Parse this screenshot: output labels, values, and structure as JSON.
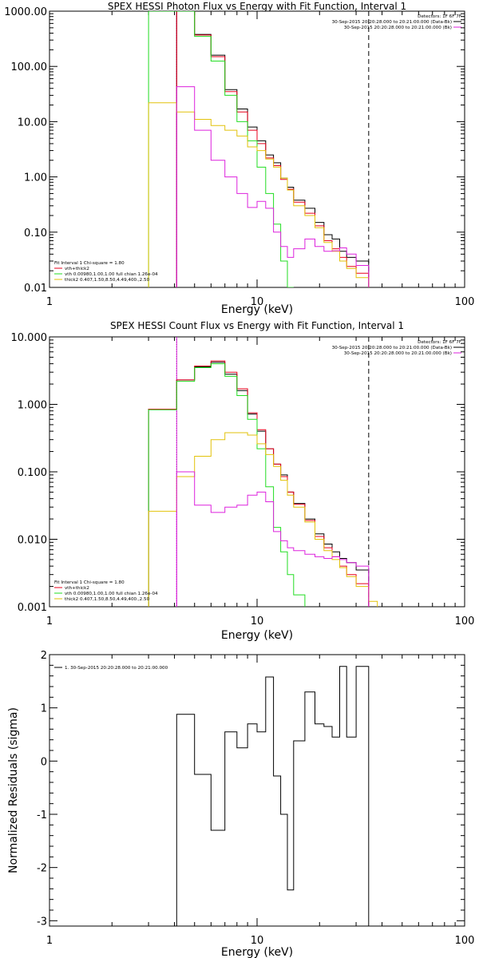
{
  "colors": {
    "black": "#000000",
    "red": "#e8001c",
    "green": "#22dd22",
    "yellow": "#e2c20a",
    "magenta": "#dd22dd"
  },
  "chart_data": [
    {
      "type": "line",
      "step": true,
      "title": "SPEX HESSI Photon Flux vs Energy with Fit Function, Interval 1",
      "xlabel": "Energy (keV)",
      "ylabel": "",
      "xscale": "log",
      "yscale": "log",
      "xlim": [
        1,
        100
      ],
      "ylim": [
        0.01,
        1000
      ],
      "xticks": [
        {
          "v": 1,
          "label": "1"
        },
        {
          "v": 10,
          "label": "10"
        },
        {
          "v": 100,
          "label": "100"
        }
      ],
      "yticks": [
        {
          "v": 0.01,
          "label": "0.01"
        },
        {
          "v": 0.1,
          "label": "0.10"
        },
        {
          "v": 1,
          "label": "1.00"
        },
        {
          "v": 10,
          "label": "10.00"
        },
        {
          "v": 100,
          "label": "100.00"
        },
        {
          "v": 1000,
          "label": "1000.00"
        }
      ],
      "header_right": [
        {
          "text": "Detectors: 1F 6F 7F",
          "color": "black"
        },
        {
          "text": "30-Sep-2015 20:20:28.000 to 20:21:00.000 (Data-Bk)",
          "color": "black",
          "line": true
        },
        {
          "text": "30-Sep-2015 20:20:28.000 to 20:21:00.000 (Bk)",
          "color": "magenta",
          "line": true
        }
      ],
      "legend": [
        {
          "text": "Fit Interval 1    Chi-square = 1.80",
          "color": "black",
          "line": false
        },
        {
          "text": "vth+thick2",
          "color": "red",
          "line": true
        },
        {
          "text": "vth 0.00980,1.00,1.00  full chian 1.26e-04",
          "color": "green",
          "line": true
        },
        {
          "text": "thick2 0.407,1.50,8.50,4.49,400.,2.50",
          "color": "yellow",
          "line": true
        }
      ],
      "vlines": [
        {
          "x": 4.1,
          "style": "dotted",
          "color": "black"
        },
        {
          "x": 4.1,
          "style": "solid",
          "color": "magenta"
        },
        {
          "x": 34.5,
          "style": "dashed",
          "color": "black"
        }
      ],
      "edges": [
        3,
        4.1,
        5,
        6,
        7,
        8,
        9,
        10,
        11,
        12,
        13,
        14,
        15,
        17,
        19,
        21,
        23,
        25,
        27,
        30,
        34.5
      ],
      "series": [
        {
          "name": "Data-Bk",
          "color": "black",
          "values": [
            null,
            1000,
            380,
            160,
            38,
            17,
            8,
            4.5,
            2.5,
            1.8,
            0.95,
            0.65,
            0.38,
            0.27,
            0.15,
            0.09,
            0.075,
            0.045,
            0.035,
            0.03
          ]
        },
        {
          "name": "vth+thick2",
          "color": "red",
          "values": [
            null,
            1000,
            370,
            150,
            35,
            15,
            7,
            4,
            2.2,
            1.6,
            0.9,
            0.6,
            0.35,
            0.22,
            0.13,
            0.07,
            0.05,
            0.035,
            0.024,
            0.018
          ]
        },
        {
          "name": "vth",
          "color": "green",
          "values": [
            1000,
            1000,
            350,
            125,
            30,
            10,
            4.5,
            1.5,
            0.5,
            0.14,
            0.03,
            0.01,
            null,
            null,
            null,
            null,
            null,
            null,
            null,
            null
          ]
        },
        {
          "name": "thick2",
          "color": "yellow",
          "values": [
            22,
            15,
            11,
            8.5,
            7,
            5.5,
            3.5,
            3,
            2.1,
            1.5,
            0.95,
            0.58,
            0.3,
            0.2,
            0.12,
            0.065,
            0.045,
            0.03,
            0.022,
            0.015
          ]
        },
        {
          "name": "Bk",
          "color": "magenta",
          "values": [
            null,
            43,
            7,
            2,
            1,
            0.5,
            0.28,
            0.36,
            0.27,
            0.1,
            0.055,
            0.035,
            0.05,
            0.075,
            0.055,
            0.045,
            0.046,
            0.052,
            0.04,
            0.025
          ]
        }
      ]
    },
    {
      "type": "line",
      "step": true,
      "title": "SPEX HESSI Count Flux vs Energy with Fit Function, Interval 1",
      "xlabel": "Energy (keV)",
      "ylabel": "",
      "xscale": "log",
      "yscale": "log",
      "xlim": [
        1,
        100
      ],
      "ylim": [
        0.001,
        10
      ],
      "xticks": [
        {
          "v": 1,
          "label": "1"
        },
        {
          "v": 10,
          "label": "10"
        },
        {
          "v": 100,
          "label": "100"
        }
      ],
      "yticks": [
        {
          "v": 0.001,
          "label": "0.001"
        },
        {
          "v": 0.01,
          "label": "0.010"
        },
        {
          "v": 0.1,
          "label": "0.100"
        },
        {
          "v": 1,
          "label": "1.000"
        },
        {
          "v": 10,
          "label": "10.000"
        }
      ],
      "header_right": [
        {
          "text": "Detectors: 1F 6F 7F",
          "color": "black"
        },
        {
          "text": "30-Sep-2015 20:20:28.000 to 20:21:00.000 (Data-Bk)",
          "color": "black",
          "line": true
        },
        {
          "text": "30-Sep-2015 20:20:28.000 to 20:21:00.000 (Bk)",
          "color": "magenta",
          "line": true
        }
      ],
      "legend": [
        {
          "text": "Fit Interval 1    Chi-square = 1.80",
          "color": "black",
          "line": false
        },
        {
          "text": "vth+thick2",
          "color": "red",
          "line": true
        },
        {
          "text": "vth 0.00980,1.00,1.00  full chian 1.26e-04",
          "color": "green",
          "line": true
        },
        {
          "text": "thick2 0.407,1.50,8.50,4.49,400.,2.50",
          "color": "yellow",
          "line": true
        }
      ],
      "vlines": [
        {
          "x": 4.1,
          "style": "dotted",
          "color": "black"
        },
        {
          "x": 4.1,
          "style": "solid",
          "color": "magenta"
        },
        {
          "x": 34.5,
          "style": "dashed",
          "color": "black"
        }
      ],
      "edges": [
        3,
        4.1,
        5,
        6,
        7,
        8,
        9,
        10,
        11,
        12,
        13,
        14,
        15,
        17,
        19,
        21,
        23,
        25,
        27,
        30,
        34.5,
        38
      ],
      "series": [
        {
          "name": "Data-Bk",
          "color": "black",
          "values": [
            0.85,
            2.3,
            3.6,
            4.2,
            2.8,
            1.6,
            0.72,
            0.4,
            0.22,
            0.13,
            0.09,
            0.05,
            0.034,
            0.02,
            0.012,
            0.0085,
            0.0065,
            0.0052,
            0.0045,
            0.0035,
            null
          ]
        },
        {
          "name": "vth+thick2",
          "color": "red",
          "values": [
            0.85,
            2.3,
            3.7,
            4.4,
            3.0,
            1.7,
            0.75,
            0.42,
            0.22,
            0.13,
            0.085,
            0.05,
            0.033,
            0.019,
            0.011,
            0.0075,
            0.0055,
            0.004,
            0.003,
            0.0022,
            null
          ]
        },
        {
          "name": "vth",
          "color": "green",
          "values": [
            0.83,
            2.2,
            3.5,
            4.0,
            2.6,
            1.35,
            0.6,
            0.22,
            0.06,
            0.015,
            0.0065,
            0.003,
            0.0015,
            null,
            null,
            null,
            null,
            null,
            null,
            null,
            null
          ]
        },
        {
          "name": "thick2",
          "color": "yellow",
          "values": [
            0.026,
            0.085,
            0.17,
            0.3,
            0.38,
            0.38,
            0.35,
            0.26,
            0.18,
            0.12,
            0.075,
            0.045,
            0.03,
            0.018,
            0.01,
            0.0068,
            0.005,
            0.0038,
            0.0028,
            0.002,
            0.0012
          ]
        },
        {
          "name": "Bk",
          "color": "magenta",
          "values": [
            null,
            0.1,
            0.032,
            0.025,
            0.03,
            0.032,
            0.045,
            0.05,
            0.036,
            0.013,
            0.0095,
            0.0075,
            0.0068,
            0.006,
            0.0055,
            0.0052,
            0.0055,
            0.005,
            0.0045,
            0.004,
            null
          ]
        }
      ]
    },
    {
      "type": "line",
      "step": true,
      "title": "",
      "xlabel": "Energy (keV)",
      "ylabel": "Normalized Residuals (sigma)",
      "xscale": "log",
      "yscale": "linear",
      "xlim": [
        1,
        100
      ],
      "ylim": [
        -3.1,
        2
      ],
      "xticks": [
        {
          "v": 1,
          "label": "1"
        },
        {
          "v": 10,
          "label": "10"
        },
        {
          "v": 100,
          "label": "100"
        }
      ],
      "yticks": [
        {
          "v": -3,
          "label": "-3"
        },
        {
          "v": -2,
          "label": "-2"
        },
        {
          "v": -1,
          "label": "-1"
        },
        {
          "v": 0,
          "label": "0"
        },
        {
          "v": 1,
          "label": "1"
        },
        {
          "v": 2,
          "label": "2"
        }
      ],
      "header_right": [],
      "legend": [
        {
          "text": "1. 30-Sep-2015 20:20:28.000 to 20:21:00.000",
          "color": "black",
          "line": true
        }
      ],
      "vlines": [],
      "edges": [
        4.1,
        5,
        6,
        7,
        8,
        9,
        10,
        11,
        12,
        13,
        14,
        15,
        17,
        19,
        21,
        23,
        25,
        27,
        30,
        34.5
      ],
      "series": [
        {
          "name": "residuals",
          "color": "black",
          "values": [
            0.88,
            -0.25,
            -1.3,
            0.55,
            0.25,
            0.7,
            0.55,
            1.58,
            -0.28,
            -1.0,
            -2.42,
            0.38,
            1.3,
            0.7,
            0.65,
            0.45,
            1.78,
            0.45,
            1.78
          ],
          "drop_to_bottom": true
        }
      ]
    }
  ]
}
